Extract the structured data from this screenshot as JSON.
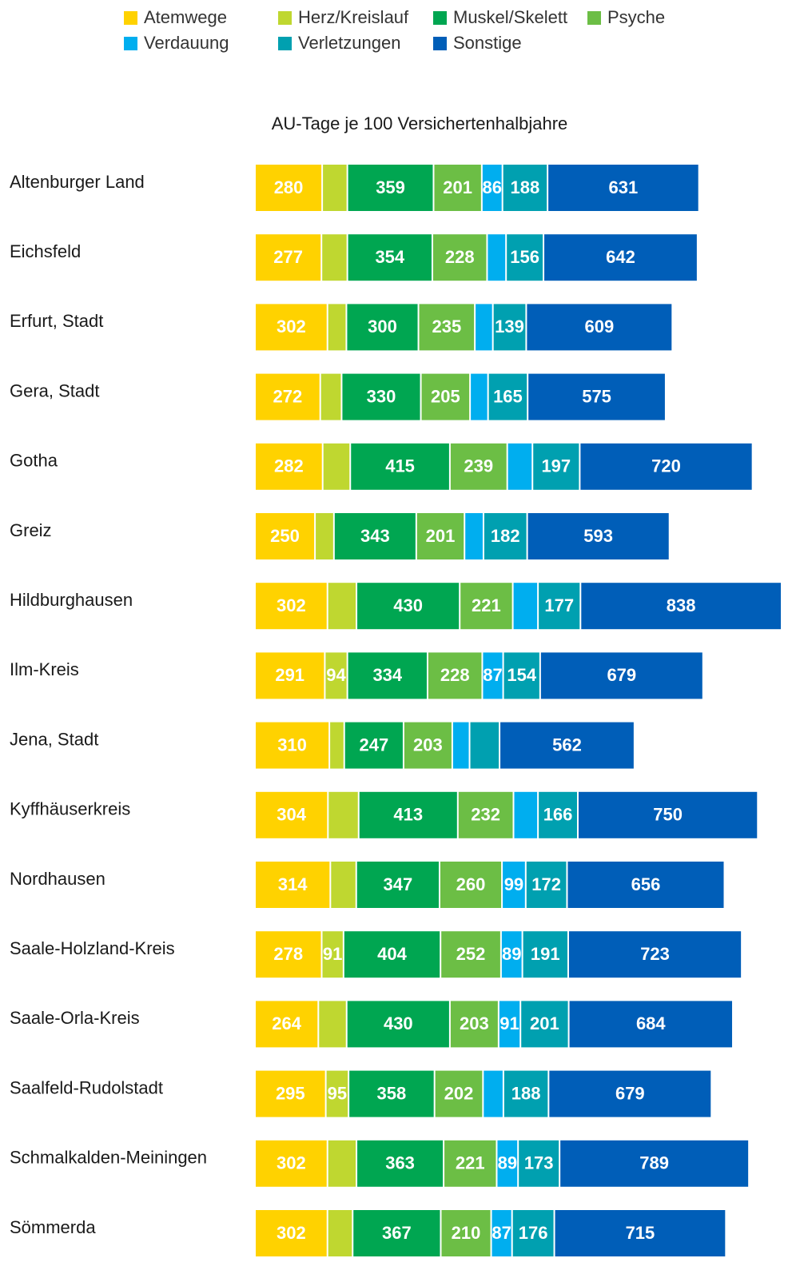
{
  "chart_data": {
    "type": "stacked-bar-horizontal",
    "title": "AU-Tage je 100 Versichertenhalbjahre",
    "categories": [
      "Altenburger Land",
      "Eichsfeld",
      "Erfurt, Stadt",
      "Gera, Stadt",
      "Gotha",
      "Greiz",
      "Hildburghausen",
      "Ilm-Kreis",
      "Jena, Stadt",
      "Kyffhäuserkreis",
      "Nordhausen",
      "Saale-Holzland-Kreis",
      "Saale-Orla-Kreis",
      "Saalfeld-Rudolstadt",
      "Schmalkalden-Meiningen",
      "Sömmerda"
    ],
    "series": [
      {
        "name": "Atemwege",
        "color": "#FFD200",
        "values": [
          280,
          277,
          302,
          272,
          282,
          250,
          302,
          291,
          310,
          304,
          314,
          278,
          264,
          295,
          302,
          302
        ],
        "value_labels": [
          280,
          277,
          302,
          272,
          282,
          250,
          302,
          291,
          310,
          304,
          314,
          278,
          264,
          295,
          302,
          302
        ]
      },
      {
        "name": "Herz/Kreislauf",
        "color": "#BFD730",
        "values": [
          105,
          108,
          79,
          89,
          115,
          79,
          121,
          94,
          62,
          128,
          108,
          91,
          118,
          95,
          121,
          105
        ],
        "value_labels": [
          null,
          null,
          null,
          null,
          null,
          null,
          null,
          94,
          null,
          null,
          null,
          91,
          null,
          95,
          null,
          null
        ]
      },
      {
        "name": "Muskel/Skelett",
        "color": "#00A651",
        "values": [
          359,
          354,
          300,
          330,
          415,
          343,
          430,
          334,
          247,
          413,
          347,
          404,
          430,
          358,
          363,
          367
        ],
        "value_labels": [
          359,
          354,
          300,
          330,
          415,
          343,
          430,
          334,
          247,
          413,
          347,
          404,
          430,
          358,
          363,
          367
        ]
      },
      {
        "name": "Psyche",
        "color": "#6CBE45",
        "values": [
          201,
          228,
          235,
          205,
          239,
          201,
          221,
          228,
          203,
          232,
          260,
          252,
          203,
          202,
          221,
          210
        ],
        "value_labels": [
          201,
          228,
          235,
          205,
          239,
          201,
          221,
          228,
          203,
          232,
          260,
          252,
          203,
          202,
          221,
          210
        ]
      },
      {
        "name": "Verdauung",
        "color": "#00AEEF",
        "values": [
          86,
          79,
          75,
          75,
          105,
          79,
          105,
          87,
          72,
          102,
          99,
          89,
          91,
          85,
          89,
          87
        ],
        "value_labels": [
          86,
          null,
          null,
          null,
          null,
          null,
          null,
          87,
          null,
          null,
          99,
          89,
          91,
          null,
          89,
          87
        ]
      },
      {
        "name": "Verletzungen",
        "color": "#00A0B0",
        "values": [
          188,
          156,
          139,
          165,
          197,
          182,
          177,
          154,
          125,
          166,
          172,
          191,
          201,
          188,
          173,
          176
        ],
        "value_labels": [
          188,
          156,
          139,
          165,
          197,
          182,
          177,
          154,
          null,
          166,
          172,
          191,
          201,
          188,
          173,
          176
        ]
      },
      {
        "name": "Sonstige",
        "color": "#005EB8",
        "values": [
          631,
          642,
          609,
          575,
          720,
          593,
          838,
          679,
          562,
          750,
          656,
          723,
          684,
          679,
          789,
          715
        ],
        "value_labels": [
          631,
          642,
          609,
          575,
          720,
          593,
          838,
          679,
          562,
          750,
          656,
          723,
          684,
          679,
          789,
          715
        ]
      }
    ]
  }
}
